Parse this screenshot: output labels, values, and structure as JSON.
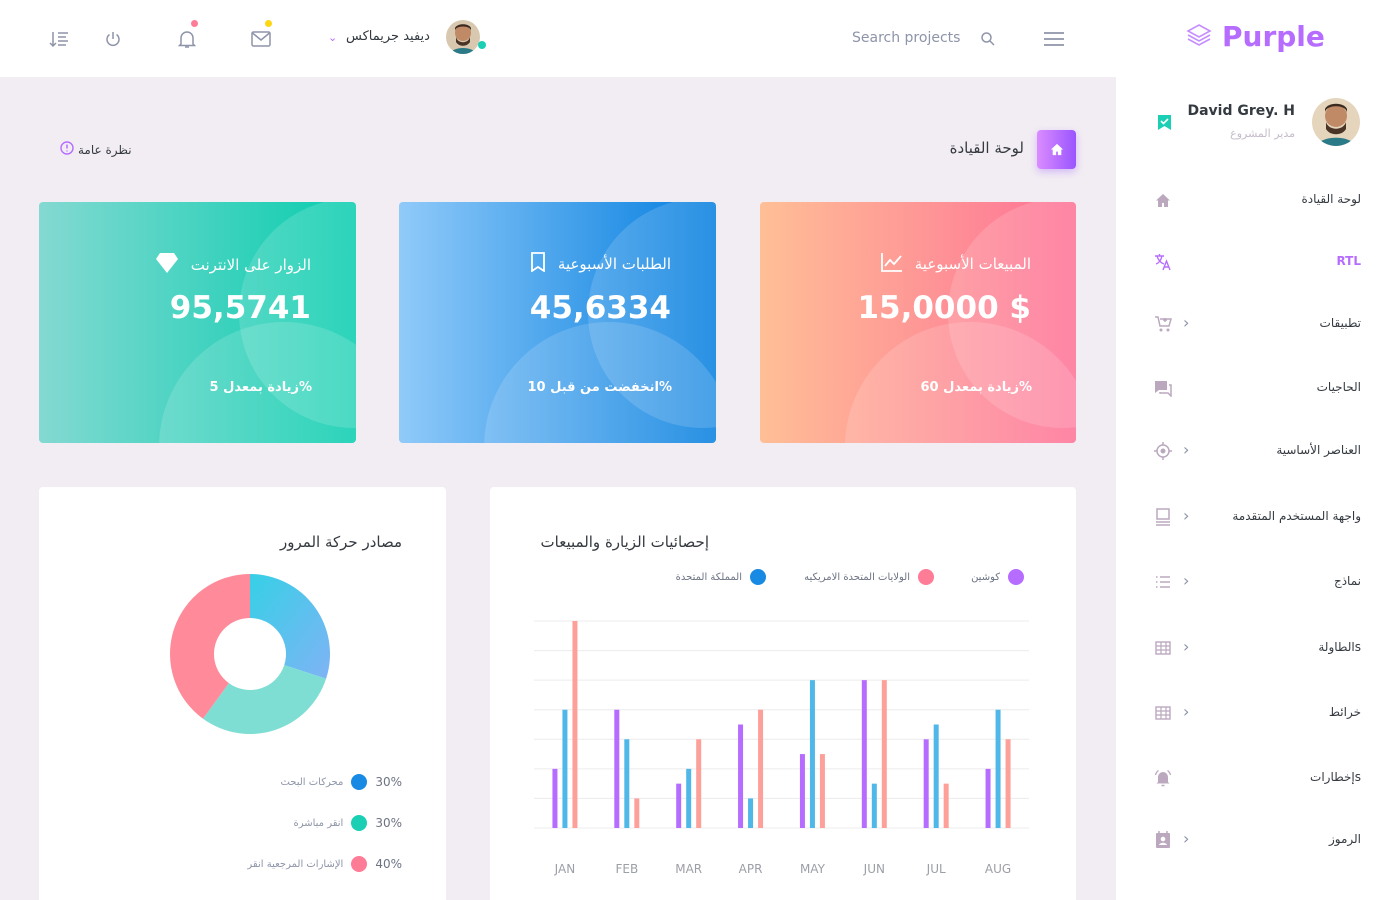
{
  "header": {
    "user_name": "ديفيد جريماكس",
    "search_placeholder": "Search projects",
    "notification_dot_color": "#fe7c96",
    "mail_dot_color": "#fed713"
  },
  "sidebar": {
    "brand": "Purple",
    "profile_name": "David Grey. H",
    "profile_role": "مدير المشروع",
    "items": [
      {
        "label": "لوحة القيادة",
        "icon": "home-icon",
        "has_chevron": false
      },
      {
        "label": "RTL",
        "icon": "translate-icon",
        "has_chevron": false
      },
      {
        "label": "تطبيقات",
        "icon": "cart-icon",
        "has_chevron": true
      },
      {
        "label": "الحاجيات",
        "icon": "chat-icon",
        "has_chevron": false
      },
      {
        "label": "العناصر الأساسية",
        "icon": "crosshair-icon",
        "has_chevron": true
      },
      {
        "label": "واجهة المستخدم المتقدمة",
        "icon": "laptop-icon",
        "has_chevron": true
      },
      {
        "label": "نماذج",
        "icon": "list-icon",
        "has_chevron": true
      },
      {
        "label": "الطاولةs",
        "icon": "table-icon",
        "has_chevron": true
      },
      {
        "label": "خرائط",
        "icon": "table-icon",
        "has_chevron": true
      },
      {
        "label": "إخطاراتs",
        "icon": "bell-ring-icon",
        "has_chevron": false
      },
      {
        "label": "الرموز",
        "icon": "contact-icon",
        "has_chevron": true
      }
    ]
  },
  "page": {
    "title": "لوحة القيادة",
    "overview": "نظرة عامة"
  },
  "stats": [
    {
      "title": "المبيعات الأسبوعية",
      "value": "15,0000 $",
      "sub": "زيادة بمعدل 60%",
      "icon": "chart-line-icon",
      "gradient": [
        "#ffbf96",
        "#fe7096"
      ]
    },
    {
      "title": "الطلبات الأسبوعية",
      "value": "45,6334",
      "sub": "انخفضت من قبل 10%",
      "icon": "bookmark-icon",
      "gradient": [
        "#90caf9",
        "#047edf"
      ]
    },
    {
      "title": "الزوار على الانترنت",
      "value": "95,5741",
      "sub": "زيادة بمعدل 5%",
      "icon": "diamond-icon",
      "gradient": [
        "#84d9d2",
        "#07cdae"
      ]
    }
  ],
  "visits_card": {
    "title": "إحصائيات الزيارة والمبيعات",
    "legend": [
      {
        "label": "كوشين",
        "color": "#b66dff"
      },
      {
        "label": "الولايات المتحدة الامريكيه",
        "color": "#fe7c96"
      },
      {
        "label": "المملكة المتحدة",
        "color": "#198ae3"
      }
    ]
  },
  "traffic_card": {
    "title": "مصادر حركة المرور",
    "legend": [
      {
        "pct": "30%",
        "label": "محركات البحث",
        "color": "#198ae3"
      },
      {
        "pct": "30%",
        "label": "انقر مباشرة",
        "color": "#1bcfb4"
      },
      {
        "pct": "40%",
        "label": "الإشارات المرجعية انقر",
        "color": "#fe7c96"
      }
    ]
  },
  "chart_data": [
    {
      "type": "bar",
      "title": "إحصائيات الزيارة والمبيعات",
      "categories": [
        "JAN",
        "FEB",
        "MAR",
        "APR",
        "MAY",
        "JUN",
        "JUL",
        "AUG"
      ],
      "ylim": [
        0,
        70
      ],
      "grid": true,
      "series": [
        {
          "name": "كوشين",
          "color": "#b66dff",
          "values": [
            20,
            40,
            15,
            35,
            25,
            50,
            30,
            20
          ]
        },
        {
          "name": "المملكة المتحدة",
          "color": "#4fb8e8",
          "values": [
            40,
            30,
            20,
            10,
            50,
            15,
            35,
            40
          ]
        },
        {
          "name": "الولايات المتحدة الامريكيه",
          "color": "#fea09a",
          "values": [
            70,
            10,
            30,
            40,
            25,
            50,
            15,
            30
          ]
        }
      ]
    },
    {
      "type": "pie",
      "title": "مصادر حركة المرور",
      "categories": [
        "محركات البحث",
        "انقر مباشرة",
        "الإشارات المرجعية انقر"
      ],
      "values": [
        30,
        30,
        40
      ],
      "colors": [
        "#4dd0e8",
        "#7fded3",
        "#fe8a9a"
      ]
    }
  ]
}
